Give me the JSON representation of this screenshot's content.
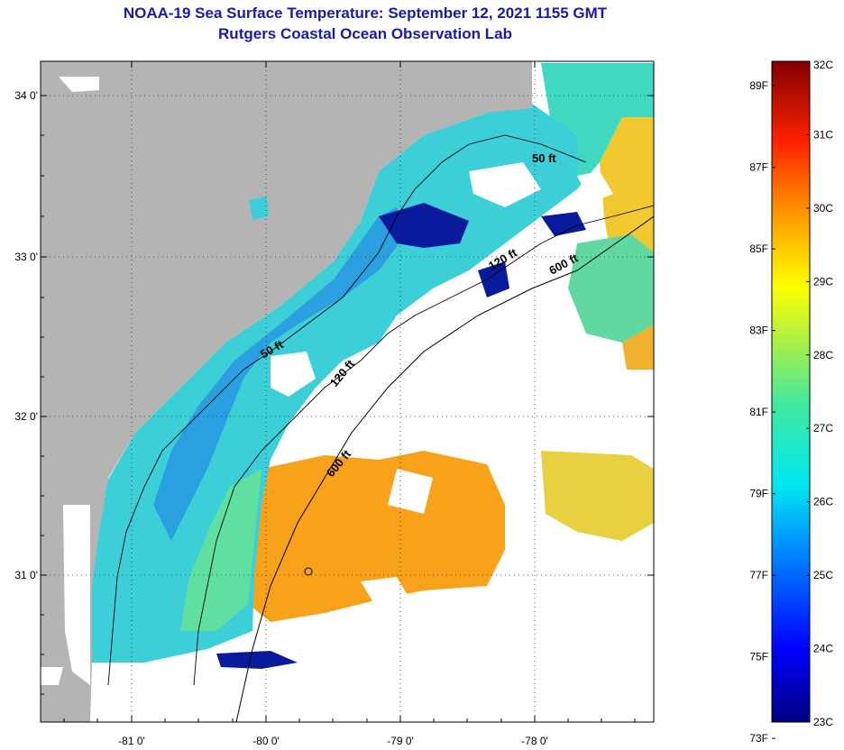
{
  "title": {
    "line1": "NOAA-19 Sea Surface Temperature:  September 12, 2021 1155 GMT",
    "line2": "Rutgers Coastal Ocean Observation Lab"
  },
  "axes": {
    "lat_labels": [
      "34 0'",
      "33 0'",
      "32 0'",
      "31 0'"
    ],
    "lon_labels": [
      "-81 0'",
      "-80 0'",
      "-79 0'",
      "-78 0'"
    ]
  },
  "contours": {
    "c50": "50 ft",
    "c120": "120 ft",
    "c600": "600 ft"
  },
  "colorbar": {
    "fahrenheit": [
      "89F",
      "87F",
      "85F",
      "83F",
      "81F",
      "79F",
      "77F",
      "75F",
      "73F"
    ],
    "celsius": [
      "32C",
      "31C",
      "30C",
      "29C",
      "28C",
      "27C",
      "26C",
      "25C",
      "24C",
      "23C"
    ],
    "range_c": [
      23,
      32
    ]
  },
  "colors": {
    "land": "#b4b4b4",
    "cloud": "#ffffff",
    "title": "#1a1aaa"
  }
}
